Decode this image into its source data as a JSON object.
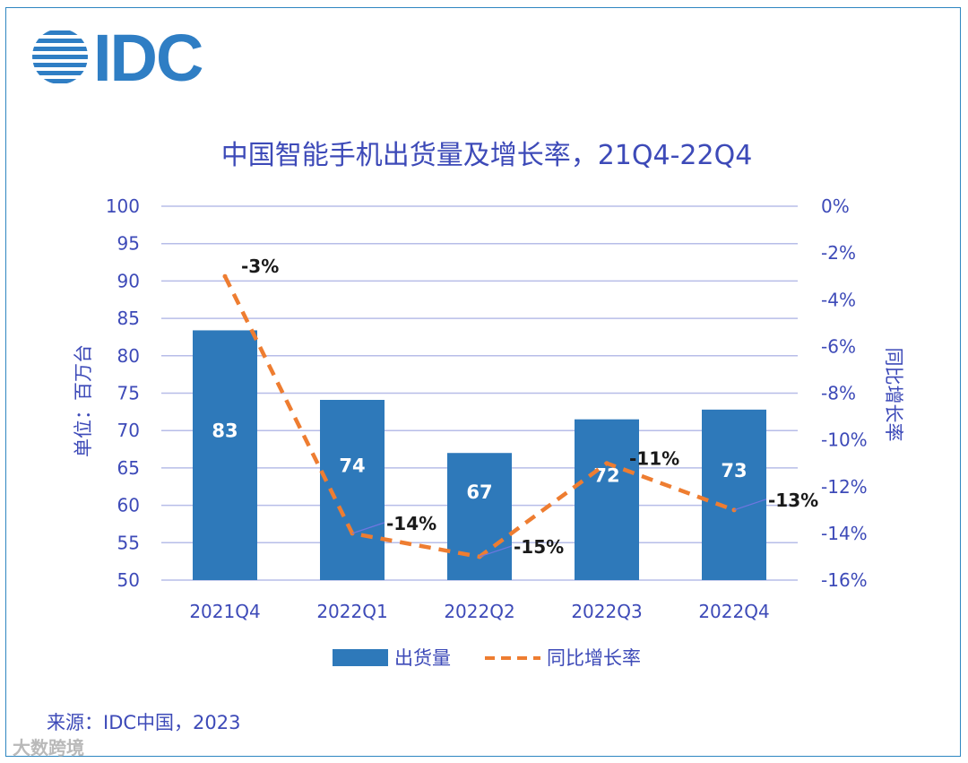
{
  "logo": {
    "text": "IDC",
    "color": "#2f7ec4"
  },
  "source": "来源：IDC中国，2023",
  "watermark": "大数跨境",
  "chart_data": {
    "type": "bar",
    "title": "中国智能手机出货量及增长率，21Q4-22Q4",
    "categories": [
      "2021Q4",
      "2022Q1",
      "2022Q2",
      "2022Q3",
      "2022Q4"
    ],
    "series": [
      {
        "name": "出货量",
        "type": "bar",
        "axis": "left",
        "values": [
          83.4,
          74.1,
          67.0,
          71.5,
          72.8
        ],
        "labels": [
          "83",
          "74",
          "67",
          "72",
          "73"
        ],
        "color": "#2e79ba"
      },
      {
        "name": "同比增长率",
        "type": "line",
        "style": "dashed",
        "axis": "right",
        "values": [
          -3,
          -14,
          -15,
          -11,
          -13
        ],
        "labels": [
          "-3%",
          "-14%",
          "-15%",
          "-11%",
          "-13%"
        ],
        "color": "#ee7d31"
      }
    ],
    "ylabel": "单位：百万台",
    "y2label": "同比增长率",
    "ylim": [
      50,
      100
    ],
    "y2lim": [
      -16,
      0
    ],
    "yticks": [
      "50",
      "55",
      "60",
      "65",
      "70",
      "75",
      "80",
      "85",
      "90",
      "95",
      "100"
    ],
    "y2ticks": [
      "-16%",
      "-14%",
      "-12%",
      "-10%",
      "-8%",
      "-6%",
      "-4%",
      "-2%",
      "0%"
    ],
    "grid": true,
    "legend": "bottom",
    "colors": {
      "text": "#3d4ab8",
      "grid": "#b7bde8",
      "bar_label": "#ffffff",
      "line_label": "#1a1a1a"
    }
  }
}
